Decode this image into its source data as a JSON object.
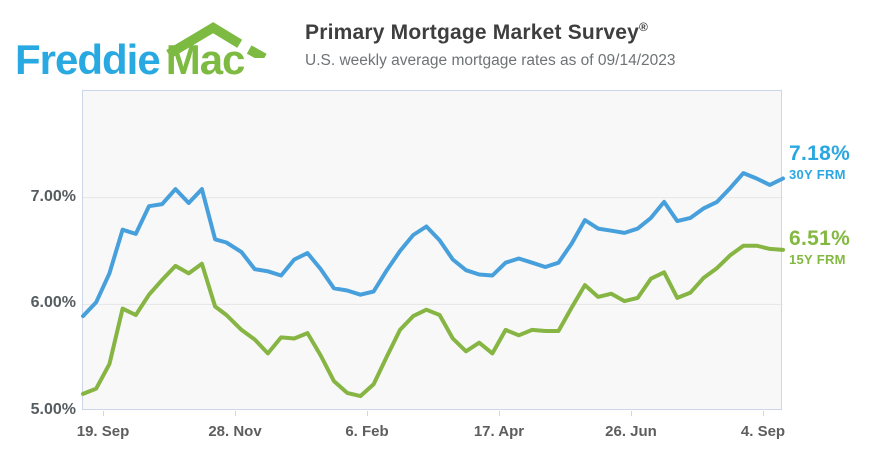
{
  "header": {
    "logo": {
      "freddie": "Freddie",
      "mac": "Mac",
      "roof_icon": "green-roof-with-chimney"
    },
    "title": "Primary Mortgage Market Survey",
    "registered_mark": "®",
    "subtitle": "U.S. weekly average mortgage rates as of 09/14/2023"
  },
  "colors": {
    "brand_blue": "#29A9E1",
    "brand_green": "#7DBA42",
    "label_blue": "#2AA7E1",
    "label_green": "#83B841",
    "grid": "#E6E6E6",
    "axis_border": "#CCD6EB",
    "plot_background": "#F8F8F8",
    "title_text": "#3E3E3E",
    "subtitle_text": "#6E7375",
    "axis_text": "#5E5E5E"
  },
  "chart_data": {
    "type": "line",
    "title": "U.S. weekly average mortgage rates as of 09/14/2023",
    "xlabel": "",
    "ylabel": "",
    "ylim": [
      5.0,
      8.0
    ],
    "grid": "horizontal",
    "legend_position": "right-of-line-ends",
    "x": [
      "2022-09-08",
      "2022-09-15",
      "2022-09-22",
      "2022-09-29",
      "2022-10-06",
      "2022-10-13",
      "2022-10-20",
      "2022-10-27",
      "2022-11-03",
      "2022-11-10",
      "2022-11-17",
      "2022-11-23",
      "2022-12-01",
      "2022-12-08",
      "2022-12-15",
      "2022-12-22",
      "2022-12-29",
      "2023-01-05",
      "2023-01-12",
      "2023-01-19",
      "2023-01-26",
      "2023-02-02",
      "2023-02-09",
      "2023-02-16",
      "2023-02-23",
      "2023-03-02",
      "2023-03-09",
      "2023-03-16",
      "2023-03-23",
      "2023-03-30",
      "2023-04-06",
      "2023-04-13",
      "2023-04-20",
      "2023-04-27",
      "2023-05-04",
      "2023-05-11",
      "2023-05-18",
      "2023-05-25",
      "2023-06-01",
      "2023-06-08",
      "2023-06-15",
      "2023-06-22",
      "2023-06-29",
      "2023-07-06",
      "2023-07-13",
      "2023-07-20",
      "2023-07-27",
      "2023-08-03",
      "2023-08-10",
      "2023-08-17",
      "2023-08-24",
      "2023-08-31",
      "2023-09-07",
      "2023-09-14"
    ],
    "series": [
      {
        "name": "30Y FRM",
        "end_label": "7.18%",
        "color": "#47A0DB",
        "values": [
          5.89,
          6.02,
          6.29,
          6.7,
          6.66,
          6.92,
          6.94,
          7.08,
          6.95,
          7.08,
          6.61,
          6.58,
          6.49,
          6.33,
          6.31,
          6.27,
          6.42,
          6.48,
          6.33,
          6.15,
          6.13,
          6.09,
          6.12,
          6.32,
          6.5,
          6.65,
          6.73,
          6.6,
          6.42,
          6.32,
          6.28,
          6.27,
          6.39,
          6.43,
          6.39,
          6.35,
          6.39,
          6.57,
          6.79,
          6.71,
          6.69,
          6.67,
          6.71,
          6.81,
          6.96,
          6.78,
          6.81,
          6.9,
          6.96,
          7.09,
          7.23,
          7.18,
          7.12,
          7.18
        ]
      },
      {
        "name": "15Y FRM",
        "end_label": "6.51%",
        "color": "#86B543",
        "values": [
          5.16,
          5.21,
          5.44,
          5.96,
          5.9,
          6.09,
          6.23,
          6.36,
          6.29,
          6.38,
          5.98,
          5.9,
          5.76,
          5.67,
          5.54,
          5.69,
          5.68,
          5.73,
          5.52,
          5.28,
          5.17,
          5.14,
          5.25,
          5.51,
          5.76,
          5.89,
          5.95,
          5.9,
          5.68,
          5.56,
          5.64,
          5.54,
          5.76,
          5.71,
          5.76,
          5.75,
          5.75,
          5.97,
          6.18,
          6.07,
          6.1,
          6.03,
          6.06,
          6.24,
          6.3,
          6.06,
          6.11,
          6.25,
          6.34,
          6.46,
          6.55,
          6.55,
          6.52,
          6.51
        ]
      }
    ],
    "yticks": [
      {
        "value": 7.0,
        "label": "7.00%"
      },
      {
        "value": 6.0,
        "label": "6.00%"
      },
      {
        "value": 5.0,
        "label": "5.00%"
      }
    ],
    "xticks": [
      {
        "date": "2022-09-19",
        "label": "19. Sep"
      },
      {
        "date": "2022-11-28",
        "label": "28. Nov"
      },
      {
        "date": "2023-02-06",
        "label": "6. Feb"
      },
      {
        "date": "2023-04-17",
        "label": "17. Apr"
      },
      {
        "date": "2023-06-26",
        "label": "26. Jun"
      },
      {
        "date": "2023-09-04",
        "label": "4. Sep"
      }
    ]
  }
}
